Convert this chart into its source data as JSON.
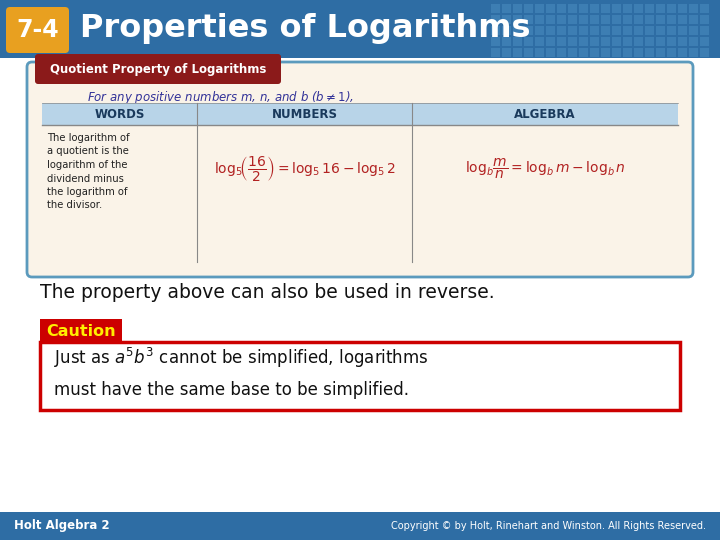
{
  "title_badge": "7-4",
  "title_text": "Properties of Logarithms",
  "header_bg": "#2E6DA4",
  "header_pattern_bg": "#4A8DC0",
  "badge_bg": "#E8A020",
  "badge_text_color": "#FFFFFF",
  "title_text_color": "#FFFFFF",
  "slide_bg": "#FFFFFF",
  "property_label": "Quotient Property of Logarithms",
  "property_label_bg": "#8B1A1A",
  "property_label_text_color": "#FFFFFF",
  "box_bg": "#FAF3E8",
  "box_border": "#5B9ABD",
  "header_row_bg": "#B8D4E8",
  "for_any_text": "For any positive numbers $m$, $n$, and $b$ ($b \\neq 1$),",
  "col_headers": [
    "WORDS",
    "NUMBERS",
    "ALGEBRA"
  ],
  "words_lines": [
    "The logarithm of",
    "a quotient is the",
    "logarithm of the",
    "dividend minus",
    "the logarithm of",
    "the divisor."
  ],
  "property_above_text": "The property above can also be used in reverse.",
  "caution_label": "Caution",
  "caution_bg": "#CC0000",
  "caution_text_color": "#FFEE00",
  "caution_box_border": "#CC0000",
  "footer_left": "Holt Algebra 2",
  "footer_right": "Copyright © by Holt, Rinehart and Winston. All Rights Reserved.",
  "footer_bg": "#2E6DA4",
  "footer_text_color": "#FFFFFF",
  "table_line_color": "#AAAAAA",
  "formula_color": "#B22222",
  "words_color": "#222222",
  "header_col_color": "#1A3A5C"
}
